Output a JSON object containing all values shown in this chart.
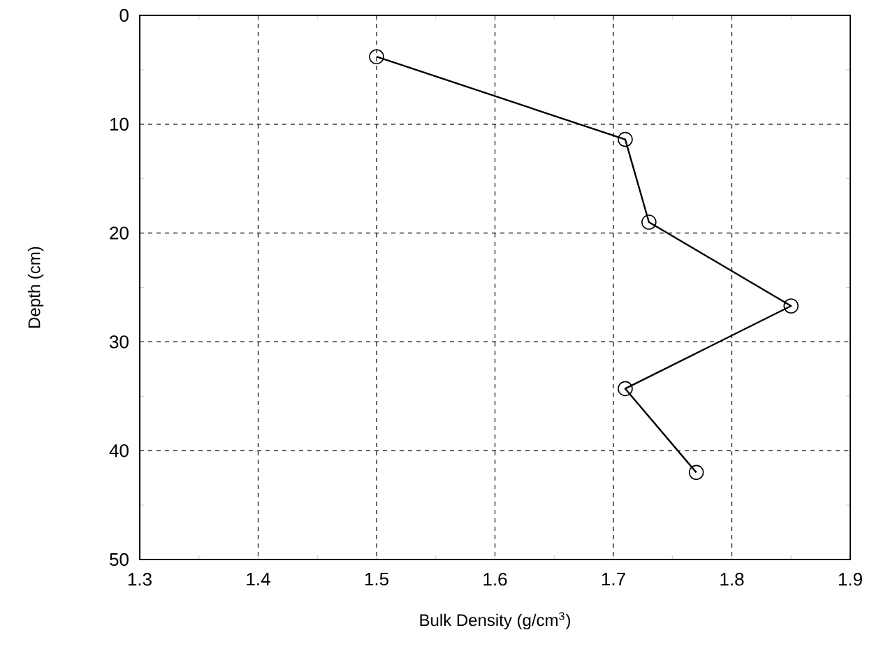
{
  "chart_data": {
    "type": "line",
    "xlabel": "Bulk Density (g/cm$^{3}$)",
    "ylabel": "Depth (cm)",
    "x": [
      1.5,
      1.71,
      1.73,
      1.85,
      1.71,
      1.77
    ],
    "values": [
      3.8,
      11.4,
      19.0,
      26.7,
      34.3,
      42.0
    ],
    "color": "#000000",
    "marker": "circle",
    "line_style": "solid",
    "grid": true,
    "xlim": [
      1.3,
      1.9
    ],
    "xticks": [
      1.3,
      1.4,
      1.5,
      1.6,
      1.7,
      1.8,
      1.9
    ],
    "ylim": [
      50,
      0
    ],
    "yticks": [
      0,
      10,
      20,
      30,
      40,
      50
    ]
  }
}
